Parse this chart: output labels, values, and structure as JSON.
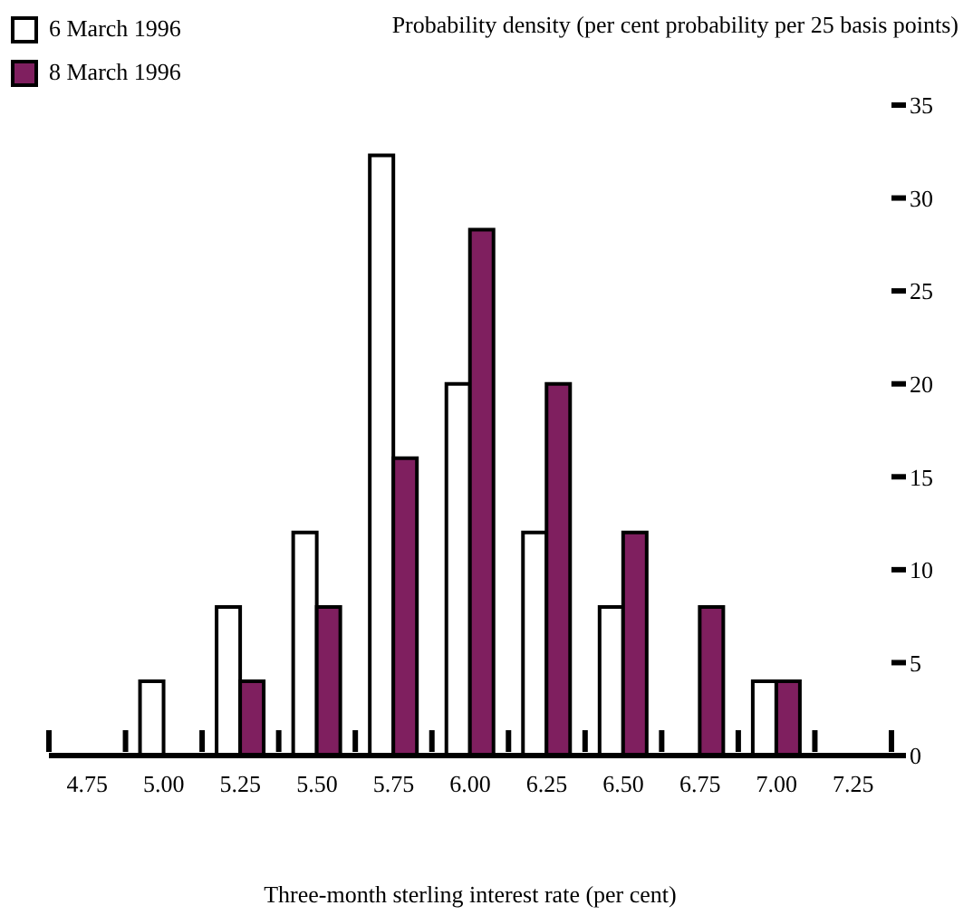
{
  "chart_data": {
    "type": "bar",
    "ylabel": "Probability density (per cent probability per 25 basis points)",
    "xlabel": "Three-month sterling interest rate (per cent)",
    "categories": [
      "4.75",
      "5.00",
      "5.25",
      "5.50",
      "5.75",
      "6.00",
      "6.25",
      "6.50",
      "6.75",
      "7.00",
      "7.25"
    ],
    "series": [
      {
        "name": "6 March 1996",
        "color": "#ffffff",
        "values": [
          null,
          4,
          8,
          12,
          32.3,
          20,
          12,
          8,
          null,
          4,
          null
        ]
      },
      {
        "name": "8 March 1996",
        "color": "#7f1f5f",
        "values": [
          null,
          null,
          4,
          8,
          16,
          28.3,
          20,
          12,
          8,
          4,
          null
        ]
      }
    ],
    "ylim": [
      0,
      35
    ],
    "yticks": [
      0,
      5,
      10,
      15,
      20,
      25,
      30,
      35
    ],
    "legend": "top left",
    "grid": false
  }
}
